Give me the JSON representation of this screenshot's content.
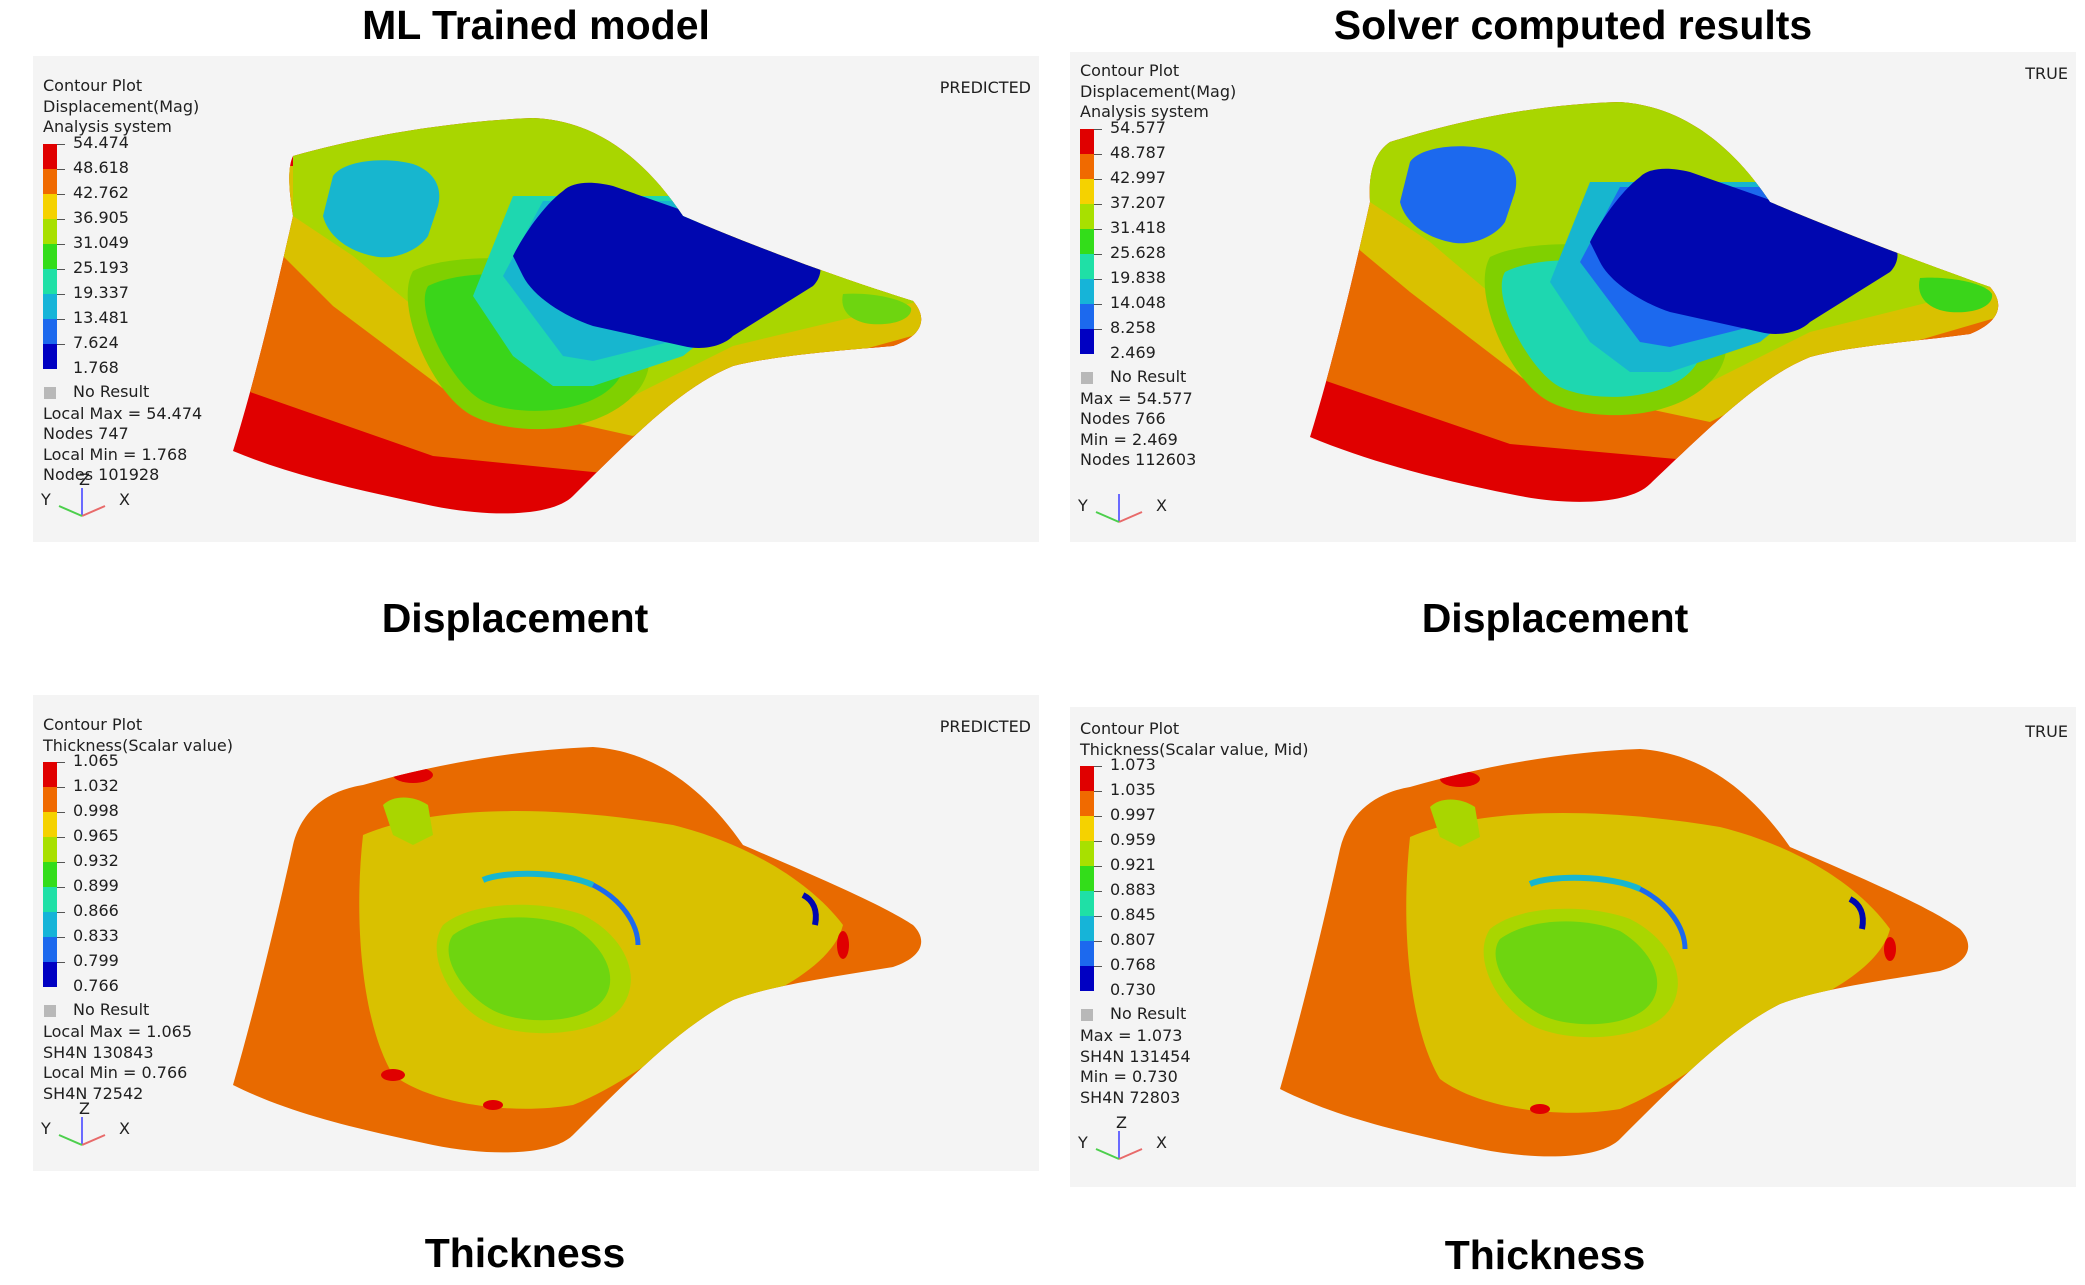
{
  "titles": {
    "left": "ML Trained model",
    "right": "Solver computed results"
  },
  "captions": {
    "displacement": "Displacement",
    "thickness": "Thickness"
  },
  "axes": {
    "x": "X",
    "y": "Y",
    "z": "Z"
  },
  "no_result_label": "No Result",
  "colors": {
    "scale": [
      "#e00000",
      "#f06a00",
      "#f5d200",
      "#a8e000",
      "#33dd1a",
      "#1fe0a6",
      "#16b4d8",
      "#1c69ee",
      "#0000c2"
    ],
    "mesh": {
      "red": "#e00000",
      "orange": "#e86a00",
      "yellow": "#d9c100",
      "yellowgreen": "#a9d600",
      "green": "#80d000",
      "brightgreen": "#3ad51a",
      "teal": "#1ed7b0",
      "cyan": "#17b6cf",
      "blue": "#1c69ee",
      "darkblue": "#0007b0",
      "lime": "#6ed510"
    }
  },
  "panels": {
    "disp_pred": {
      "header": [
        "Contour Plot",
        "Displacement(Mag)",
        "Analysis system"
      ],
      "tag": "PREDICTED",
      "ticks": [
        "54.474",
        "48.618",
        "42.762",
        "36.905",
        "31.049",
        "25.193",
        "19.337",
        "13.481",
        "7.624",
        "1.768"
      ],
      "stats": [
        "Local Max = 54.474",
        "Nodes 747",
        "Local Min = 1.768",
        "Nodes 101928"
      ]
    },
    "disp_true": {
      "header": [
        "Contour Plot",
        "Displacement(Mag)",
        "Analysis system"
      ],
      "tag": "TRUE",
      "ticks": [
        "54.577",
        "48.787",
        "42.997",
        "37.207",
        "31.418",
        "25.628",
        "19.838",
        "14.048",
        "8.258",
        "2.469"
      ],
      "stats": [
        "Max = 54.577",
        "Nodes 766",
        "Min = 2.469",
        "Nodes 112603"
      ]
    },
    "thick_pred": {
      "header": [
        "Contour Plot",
        "Thickness(Scalar value)"
      ],
      "tag": "PREDICTED",
      "ticks": [
        "1.065",
        "1.032",
        "0.998",
        "0.965",
        "0.932",
        "0.899",
        "0.866",
        "0.833",
        "0.799",
        "0.766"
      ],
      "stats": [
        "Local Max = 1.065",
        "SH4N 130843",
        "Local Min = 0.766",
        "SH4N 72542"
      ]
    },
    "thick_true": {
      "header": [
        "Contour Plot",
        "Thickness(Scalar value, Mid)"
      ],
      "tag": "TRUE",
      "ticks": [
        "1.073",
        "1.035",
        "0.997",
        "0.959",
        "0.921",
        "0.883",
        "0.845",
        "0.807",
        "0.768",
        "0.730"
      ],
      "stats": [
        "Max = 1.073",
        "SH4N 131454",
        "Min = 0.730",
        "SH4N 72803"
      ]
    }
  }
}
